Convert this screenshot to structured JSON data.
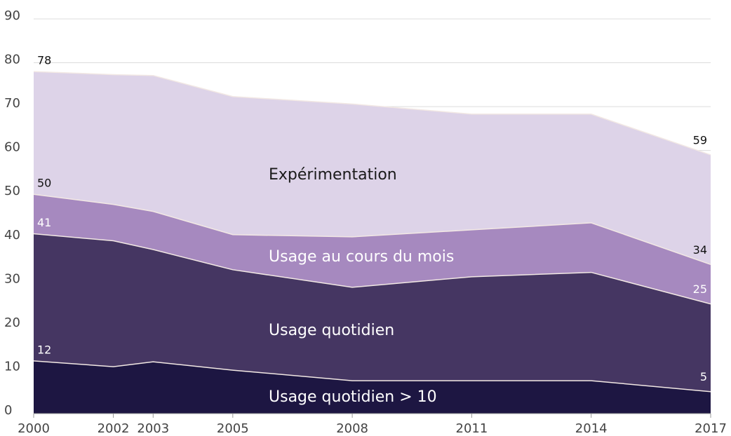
{
  "chart_data": {
    "type": "area",
    "x": [
      2000,
      2002,
      2003,
      2005,
      2008,
      2011,
      2014,
      2017
    ],
    "series": [
      {
        "name": "Expérimentation",
        "color": "#ddd3e8",
        "label_color": "#1a1a1a",
        "values": [
          78,
          77.3,
          77.1,
          72.3,
          70.6,
          68.3,
          68.3,
          59
        ]
      },
      {
        "name": "Usage au cours du mois",
        "color": "#a689bf",
        "label_color": "#ffffff",
        "values": [
          50,
          47.7,
          46.1,
          40.8,
          40.3,
          41.9,
          43.5,
          34
        ]
      },
      {
        "name": "Usage quotidien",
        "color": "#453662",
        "label_color": "#ffffff",
        "values": [
          41,
          39.4,
          37.4,
          32.8,
          28.8,
          31.2,
          32.2,
          25
        ]
      },
      {
        "name": "Usage quotidien > 10",
        "color": "#1d1642",
        "label_color": "#ffffff",
        "values": [
          12,
          10.7,
          11.8,
          9.9,
          7.5,
          7.5,
          7.5,
          5
        ]
      }
    ],
    "xlim": [
      2000,
      2017
    ],
    "xticks": [
      2000,
      2002,
      2003,
      2005,
      2008,
      2011,
      2014,
      2017
    ],
    "ylim": [
      0,
      90
    ],
    "yticks": [
      0,
      10,
      20,
      30,
      40,
      50,
      60,
      70,
      80,
      90
    ],
    "grid": true
  }
}
